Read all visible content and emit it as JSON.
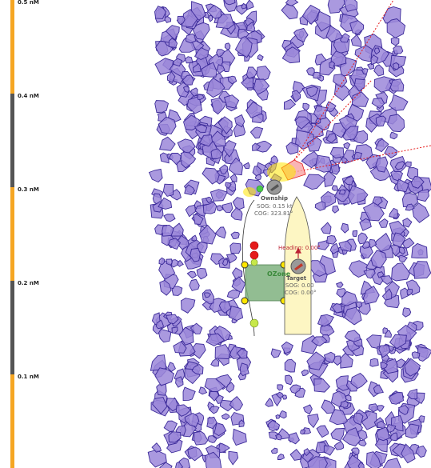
{
  "scale": {
    "ticks": [
      "0.5 nM",
      "0.4 nM",
      "0.3 nM",
      "0.2 nM",
      "0.1 nM"
    ],
    "colors": {
      "orange": "#f5a623",
      "gray": "#555555"
    }
  },
  "ownship": {
    "name": "Ownship",
    "sog": "SOG: 0.15 kt",
    "cog": "COG: 323.81°"
  },
  "target": {
    "name": "Target",
    "heading": "Heading: 0.00°",
    "sog": "SOG: 0.00",
    "cog": "COG: 0.00°"
  },
  "zone": {
    "name": "OZone"
  },
  "colors": {
    "ice_fill": "#9b87d9",
    "ice_stroke": "#3b2a99",
    "zone_fill": "#7fb27f",
    "hull_fill": "#fdf6c3",
    "danger": "#e51b1b",
    "handle": "#ffe600",
    "green_dot": "#49c949"
  },
  "icons": [
    "ownship-icon",
    "target-vessel-icon"
  ]
}
